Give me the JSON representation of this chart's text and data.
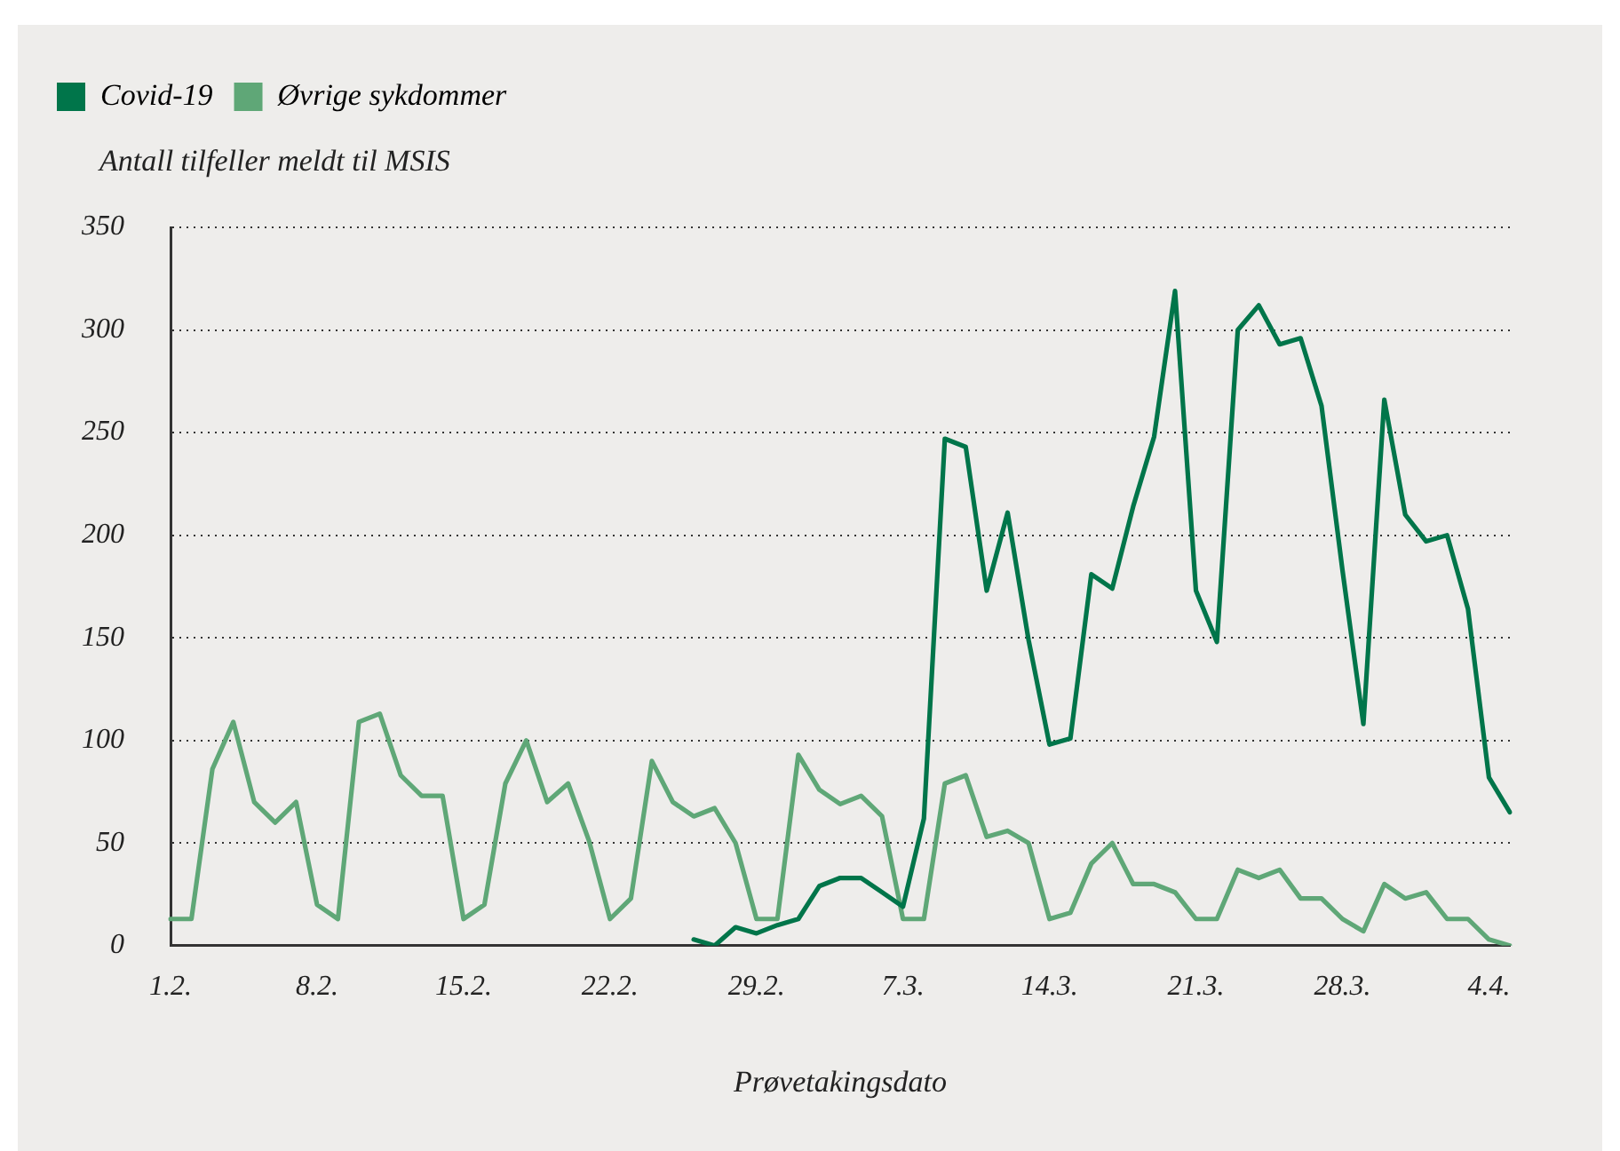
{
  "chart_data": {
    "type": "line",
    "xlabel": "Prøvetakingsdato",
    "ylabel": "Antall tilfeller meldt til MSIS",
    "categories": [
      "1.2.",
      null,
      null,
      null,
      null,
      null,
      null,
      "8.2.",
      null,
      null,
      null,
      null,
      null,
      null,
      "15.2.",
      null,
      null,
      null,
      null,
      null,
      null,
      "22.2.",
      null,
      null,
      null,
      null,
      null,
      null,
      "29.2.",
      null,
      null,
      null,
      null,
      null,
      null,
      "7.3.",
      null,
      null,
      null,
      null,
      null,
      null,
      "14.3.",
      null,
      null,
      null,
      null,
      null,
      null,
      "21.3.",
      null,
      null,
      null,
      null,
      null,
      null,
      "28.3.",
      null,
      null,
      null,
      null,
      null,
      null,
      "4.4.",
      null
    ],
    "series": [
      {
        "name": "Covid-19",
        "color": "#00754a",
        "values": [
          null,
          null,
          null,
          null,
          null,
          null,
          null,
          null,
          null,
          null,
          null,
          null,
          null,
          null,
          null,
          null,
          null,
          null,
          null,
          null,
          null,
          null,
          null,
          null,
          null,
          3,
          0,
          9,
          6,
          10,
          13,
          29,
          33,
          33,
          26,
          19,
          62,
          247,
          243,
          173,
          211,
          149,
          98,
          101,
          181,
          174,
          214,
          248,
          319,
          173,
          148,
          300,
          312,
          293,
          296,
          263,
          183,
          108,
          266,
          210,
          197,
          200,
          164,
          82,
          65
        ]
      },
      {
        "name": "Øvrige sykdommer",
        "color": "#5fa777",
        "values": [
          13,
          13,
          86,
          109,
          70,
          60,
          70,
          20,
          13,
          109,
          113,
          83,
          73,
          73,
          13,
          20,
          79,
          100,
          70,
          79,
          51,
          13,
          23,
          90,
          70,
          63,
          67,
          50,
          13,
          13,
          93,
          76,
          69,
          73,
          63,
          13,
          13,
          79,
          83,
          53,
          56,
          50,
          13,
          16,
          40,
          50,
          30,
          30,
          26,
          13,
          13,
          37,
          33,
          37,
          23,
          23,
          13,
          7,
          30,
          23,
          26,
          13,
          13,
          3,
          0
        ]
      }
    ],
    "ylim": [
      0,
      350
    ],
    "yticks": [
      0,
      50,
      100,
      150,
      200,
      250,
      300,
      350
    ],
    "grid": "y",
    "legend": "top left",
    "marker": "none",
    "line_style": "solid"
  }
}
